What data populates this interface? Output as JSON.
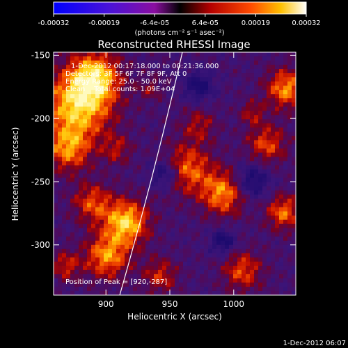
{
  "colorbar": {
    "ticks": [
      "-0.00032",
      "-0.00019",
      "-6.4e-05",
      "6.4e-05",
      "0.00019",
      "0.00032"
    ],
    "units": "(photons cm⁻² s⁻¹ asec⁻²)"
  },
  "title": "Reconstructed RHESSI Image",
  "info": {
    "time_range": "1-Dec-2012 00:17:18.000 to 00:21:36.000",
    "detectors": "Detectors: 3F 5F 6F 7F 8F 9F, Att 0",
    "energy": "Energy Range: 25.0 - 50.0 keV",
    "clean": "Clean    Total counts: 1.09E+04",
    "peak": "Position of Peak = [920,-287]"
  },
  "axes": {
    "xlabel": "Heliocentric X (arcsec)",
    "ylabel": "Heliocentric Y (arcsec)",
    "xticks": [
      "900",
      "950",
      "1000"
    ],
    "yticks": [
      "-150",
      "-200",
      "-250",
      "-300"
    ],
    "xlim": [
      860,
      1045
    ],
    "ylim": [
      -340,
      -148
    ]
  },
  "footer": {
    "timestamp": "1-Dec-2012 06:07"
  }
}
